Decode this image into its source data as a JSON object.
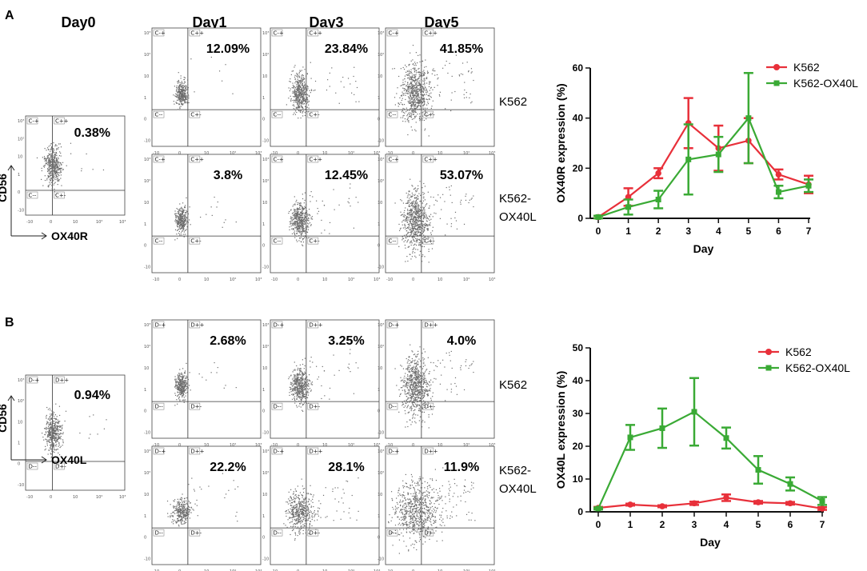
{
  "panels": [
    {
      "label": "A",
      "day_headers": [
        "Day0",
        "Day1",
        "Day3",
        "Day5"
      ],
      "y_marker": "CD56",
      "x_marker": "OX40R",
      "quadrant_prefix": "C",
      "day0_percent": "0.38%",
      "rows": [
        {
          "cell_line": [
            "K562"
          ],
          "percents": [
            "12.09%",
            "23.84%",
            "41.85%"
          ]
        },
        {
          "cell_line": [
            "K562-",
            "OX40L"
          ],
          "percents": [
            "3.8%",
            "12.45%",
            "53.07%"
          ]
        }
      ]
    },
    {
      "label": "B",
      "day_headers": [],
      "y_marker": "CD56",
      "x_marker": "OX40L",
      "quadrant_prefix": "D",
      "day0_percent": "0.94%",
      "rows": [
        {
          "cell_line": [
            "K562"
          ],
          "percents": [
            "2.68%",
            "3.25%",
            "4.0%"
          ]
        },
        {
          "cell_line": [
            "K562-",
            "OX40L"
          ],
          "percents": [
            "22.2%",
            "28.1%",
            "11.9%"
          ]
        }
      ]
    }
  ],
  "chart_data": [
    {
      "type": "line",
      "title": "",
      "xlabel": "Day",
      "ylabel": "OX40R expression (%)",
      "x": [
        0,
        1,
        2,
        3,
        4,
        5,
        6,
        7
      ],
      "ylim": [
        0,
        60
      ],
      "yticks": [
        0,
        20,
        40,
        60
      ],
      "legend_position": "top-right",
      "series": [
        {
          "name": "K562",
          "marker": "circle",
          "color": "#e8303a",
          "values": [
            0.5,
            8.5,
            18,
            38,
            28,
            31,
            17.5,
            13.5
          ],
          "errors": [
            0.5,
            3.5,
            2,
            10,
            9,
            9,
            2,
            3.5
          ]
        },
        {
          "name": "K562-OX40L",
          "marker": "square",
          "color": "#3aaa35",
          "values": [
            0.5,
            4.5,
            7.5,
            23.5,
            25.5,
            40,
            10.5,
            13
          ],
          "errors": [
            0.5,
            3,
            3.5,
            14,
            7,
            18,
            2.5,
            2.5
          ]
        }
      ]
    },
    {
      "type": "line",
      "title": "",
      "xlabel": "Day",
      "ylabel": "OX40L expression (%)",
      "x": [
        0,
        1,
        2,
        3,
        4,
        5,
        6,
        7
      ],
      "ylim": [
        0,
        50
      ],
      "yticks": [
        0,
        10,
        20,
        30,
        40,
        50
      ],
      "legend_position": "top-right",
      "series": [
        {
          "name": "K562",
          "marker": "circle",
          "color": "#e8303a",
          "values": [
            1.2,
            2.2,
            1.7,
            2.6,
            4.3,
            2.9,
            2.6,
            1.0
          ],
          "errors": [
            0.3,
            0.3,
            0.3,
            0.5,
            1.0,
            0.4,
            0.4,
            0.4
          ]
        },
        {
          "name": "K562-OX40L",
          "marker": "square",
          "color": "#3aaa35",
          "values": [
            1.0,
            22.7,
            25.5,
            30.5,
            22.5,
            12.8,
            8.5,
            3.3
          ],
          "errors": [
            0.3,
            3.8,
            6,
            10.3,
            3.2,
            4.2,
            2.0,
            1.2
          ]
        }
      ]
    }
  ]
}
